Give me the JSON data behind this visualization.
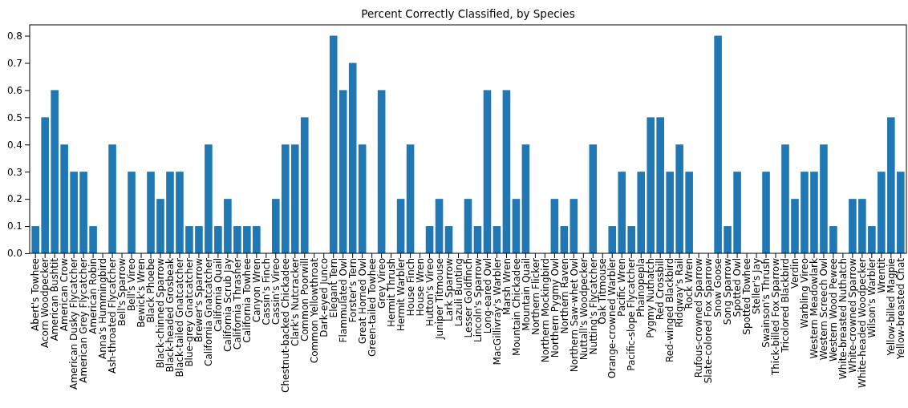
{
  "chart_data": {
    "type": "bar",
    "title": "Percent Correctly Classified, by Species",
    "categories": [
      "Abert's Towhee",
      "Acorn Woodpecker",
      "American Bushtit",
      "American Crow",
      "American Dusky Flycatcher",
      "American Grey Flycatcher",
      "American Robin",
      "Anna's Hummingbird",
      "Ash-throated Flycatcher",
      "Bell's Sparrow",
      "Bell's Vireo",
      "Bewick's Wren",
      "Black Phoebe",
      "Black-chinned Sparrow",
      "Black-headed Grosbeak",
      "Black-tailed Gnatcatcher",
      "Blue-grey Gnatcatcher",
      "Brewer's Sparrow",
      "California Gnatcatcher",
      "California Quail",
      "California Scrub Jay",
      "California Thrasher",
      "California Towhee",
      "Canyon Wren",
      "Cassin's Finch",
      "Cassin's Vireo",
      "Chestnut-backed Chickadee",
      "Clark's Nutcracker",
      "Common Poorwill",
      "Common Yellowthroat",
      "Dark-eyed Junco",
      "Elegant Tern",
      "Flammulated Owl",
      "Forster's Tern",
      "Great Horned Owl",
      "Green-tailed Towhee",
      "Grey Vireo",
      "Hermit Thrush",
      "Hermit Warbler",
      "House Finch",
      "House Wren",
      "Hutton's Vireo",
      "Juniper Titmouse",
      "Lark Sparrow",
      "Lazuli Bunting",
      "Lesser Goldfinch",
      "Lincoln's Sparrow",
      "Long-eared Owl",
      "MacGillivray's Warbler",
      "Marsh Wren",
      "Mountain Chickadee",
      "Mountain Quail",
      "Northern Flicker",
      "Northern Mockingbird",
      "Northern Pygmy Owl",
      "Northern Raven",
      "Northern Saw-whet Owl",
      "Nuttall's Woodpecker",
      "Nutting's Flycatcher",
      "Oak Titmouse",
      "Orange-crowned Warbler",
      "Pacific Wren",
      "Pacific-slope Flycatcher",
      "Phainopepla",
      "Pygmy Nuthatch",
      "Red Crossbill",
      "Red-winged Blackbird",
      "Ridgway's Rail",
      "Rock Wren",
      "Rufous-crowned Sparrow",
      "Slate-colored Fox Sparrow",
      "Snow Goose",
      "Song Sparrow",
      "Spotted Owl",
      "Spotted Towhee",
      "Steller's Jay",
      "Swainson's Thrush",
      "Thick-billed Fox Sparrow",
      "Tricolored Blackbird",
      "Verdin",
      "Warbling Vireo",
      "Western Meadowlark",
      "Western Screech Owl",
      "Western Wood Pewee",
      "White-breasted Nuthatch",
      "White-crowned Sparrow",
      "White-headed Woodpecker",
      "Wilson's Warbler",
      "Wrentit",
      "Yellow-billed Magpie",
      "Yellow-breasted Chat"
    ],
    "values": [
      0.1,
      0.5,
      0.6,
      0.4,
      0.3,
      0.3,
      0.1,
      0,
      0.4,
      0,
      0.3,
      0,
      0.3,
      0.2,
      0.3,
      0.3,
      0.1,
      0.1,
      0.4,
      0.1,
      0.2,
      0.1,
      0.1,
      0.1,
      0,
      0.2,
      0.4,
      0.4,
      0.5,
      0,
      0,
      0.8,
      0.6,
      0.7,
      0.4,
      0,
      0.6,
      0,
      0.2,
      0.4,
      0,
      0.1,
      0.2,
      0.1,
      0,
      0.2,
      0.1,
      0.6,
      0.1,
      0.6,
      0.2,
      0.4,
      0,
      0,
      0.2,
      0.1,
      0.2,
      0,
      0.4,
      0,
      0.1,
      0.3,
      0.1,
      0.3,
      0.5,
      0.5,
      0.3,
      0.4,
      0.3,
      0,
      0,
      0.8,
      0.1,
      0.3,
      0,
      0,
      0.3,
      0,
      0.4,
      0.2,
      0.3,
      0.3,
      0.4,
      0.1,
      0,
      0.2,
      0.2,
      0.1,
      0.3,
      0.5,
      0.3
    ],
    "color": "#1f77b4",
    "ylim": [
      0,
      0.84
    ],
    "yticks": [
      {
        "value": 0,
        "label": "0.0"
      },
      {
        "value": 0.1,
        "label": "0.1"
      },
      {
        "value": 0.2,
        "label": "0.2"
      },
      {
        "value": 0.3,
        "label": "0.3"
      },
      {
        "value": 0.4,
        "label": "0.4"
      },
      {
        "value": 0.5,
        "label": "0.5"
      },
      {
        "value": 0.6,
        "label": "0.6"
      },
      {
        "value": 0.7,
        "label": "0.7"
      },
      {
        "value": 0.8,
        "label": "0.8"
      }
    ],
    "grid": false
  }
}
